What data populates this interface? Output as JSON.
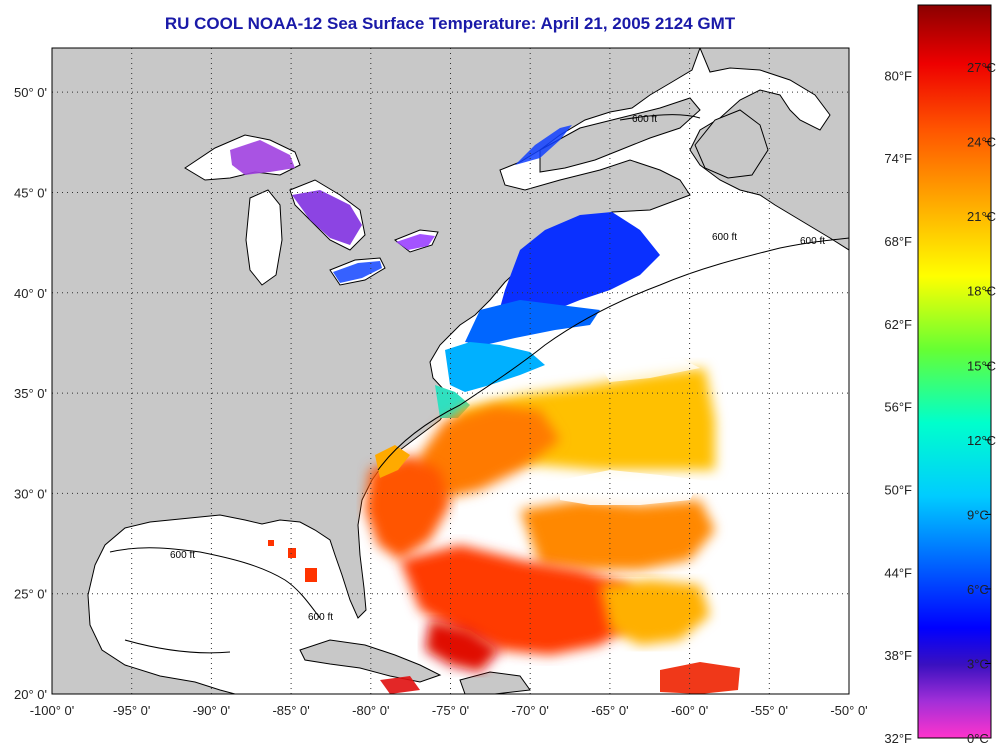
{
  "title": "RU COOL  NOAA-12  Sea Surface Temperature:  April 21, 2005 2124 GMT",
  "map": {
    "lon_range": [
      -100,
      -50
    ],
    "lat_range": [
      20,
      52.2
    ],
    "x_ticks": [
      {
        "lon": -100,
        "label": "-100° 0'"
      },
      {
        "lon": -95,
        "label": "-95° 0'"
      },
      {
        "lon": -90,
        "label": "-90° 0'"
      },
      {
        "lon": -85,
        "label": "-85° 0'"
      },
      {
        "lon": -80,
        "label": "-80° 0'"
      },
      {
        "lon": -75,
        "label": "-75° 0'"
      },
      {
        "lon": -70,
        "label": "-70° 0'"
      },
      {
        "lon": -65,
        "label": "-65° 0'"
      },
      {
        "lon": -60,
        "label": "-60° 0'"
      },
      {
        "lon": -55,
        "label": "-55° 0'"
      },
      {
        "lon": -50,
        "label": "-50° 0'"
      }
    ],
    "y_ticks": [
      {
        "lat": 50,
        "label": "50° 0'"
      },
      {
        "lat": 45,
        "label": "45° 0'"
      },
      {
        "lat": 40,
        "label": "40° 0'"
      },
      {
        "lat": 35,
        "label": "35° 0'"
      },
      {
        "lat": 30,
        "label": "30° 0'"
      },
      {
        "lat": 25,
        "label": "25° 0'"
      },
      {
        "lat": 20,
        "label": "20° 0'"
      }
    ],
    "grid": true,
    "land_color": "#c8c8c8",
    "ocean_color": "#ffffff",
    "contour_labels": [
      "600 ft",
      "600 ft",
      "600 ft",
      "600 ft",
      "600 ft"
    ]
  },
  "colorbar": {
    "celsius": [
      "27°C",
      "24°C",
      "21°C",
      "18°C",
      "15°C",
      "12°C",
      "9°C",
      "6°C",
      "3°C",
      "0°C"
    ],
    "celsius_values": [
      27,
      24,
      21,
      18,
      15,
      12,
      9,
      6,
      3,
      0
    ],
    "fahrenheit": [
      "80°F",
      "74°F",
      "68°F",
      "62°F",
      "56°F",
      "50°F",
      "44°F",
      "38°F",
      "32°F"
    ],
    "fahrenheit_values": [
      80,
      74,
      68,
      62,
      56,
      50,
      44,
      38,
      32
    ],
    "range_c": [
      0,
      29.5
    ],
    "stops": [
      {
        "t": 0,
        "color": "#ff33cc"
      },
      {
        "t": 0.05,
        "color": "#a22fd8"
      },
      {
        "t": 0.1,
        "color": "#3a10c0"
      },
      {
        "t": 0.15,
        "color": "#0000ff"
      },
      {
        "t": 0.24,
        "color": "#0066ff"
      },
      {
        "t": 0.33,
        "color": "#00ccff"
      },
      {
        "t": 0.43,
        "color": "#00ffcc"
      },
      {
        "t": 0.53,
        "color": "#66ff33"
      },
      {
        "t": 0.63,
        "color": "#ffff00"
      },
      {
        "t": 0.73,
        "color": "#ffaa00"
      },
      {
        "t": 0.83,
        "color": "#ff5500"
      },
      {
        "t": 0.92,
        "color": "#ee0000"
      },
      {
        "t": 1.0,
        "color": "#8b0000"
      }
    ]
  }
}
